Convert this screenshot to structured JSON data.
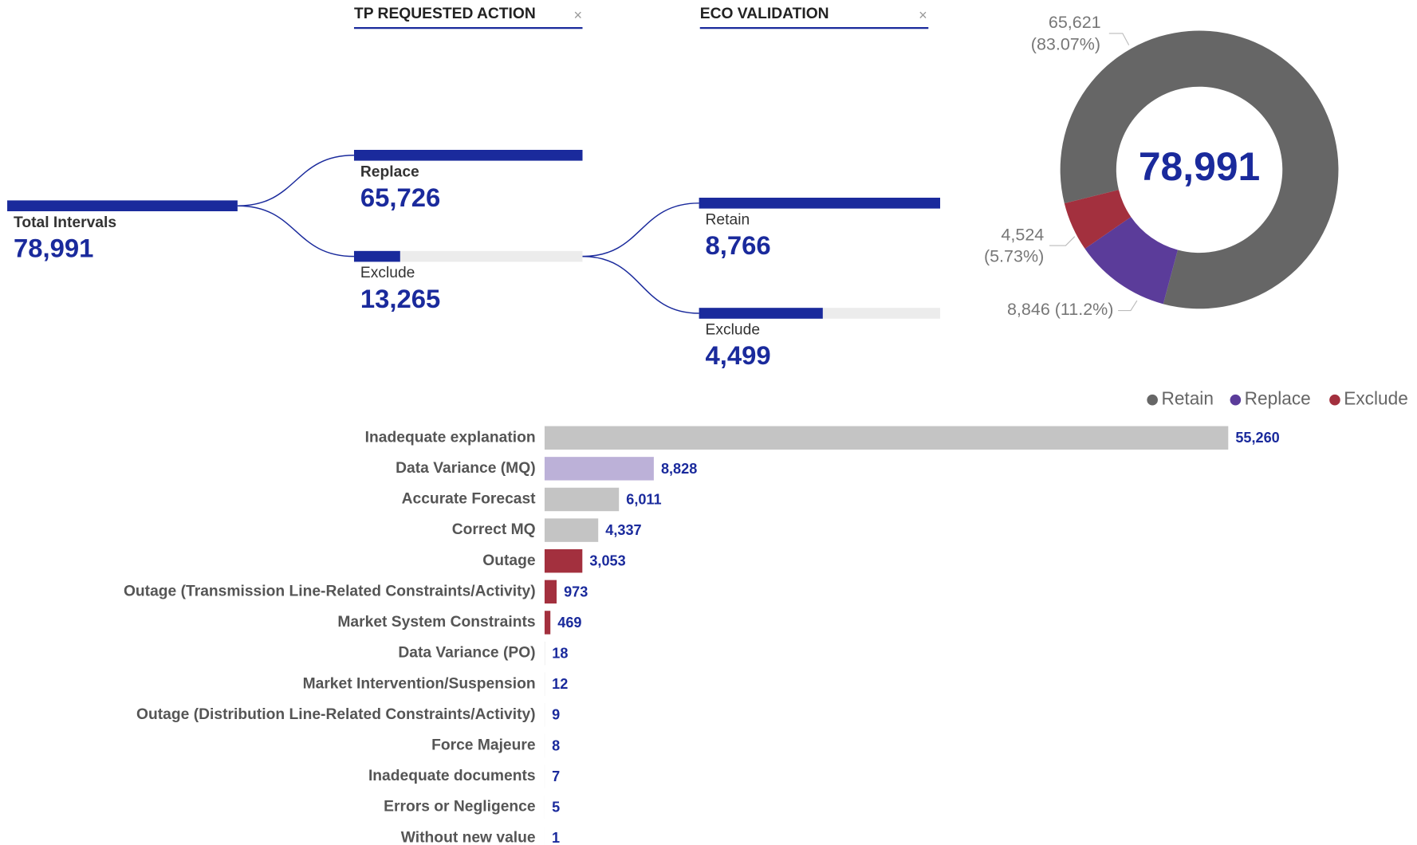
{
  "tree": {
    "headers": [
      "TP REQUESTED ACTION",
      "ECO VALIDATION"
    ],
    "root": {
      "label": "Total Intervals",
      "value": 78991,
      "value_label": "78,991"
    },
    "level1": [
      {
        "label": "Replace",
        "value": 65726,
        "value_label": "65,726"
      },
      {
        "label": "Exclude",
        "value": 13265,
        "value_label": "13,265"
      }
    ],
    "level2": [
      {
        "label": "Retain",
        "value": 8766,
        "value_label": "8,766"
      },
      {
        "label": "Exclude",
        "value": 4499,
        "value_label": "4,499"
      }
    ]
  },
  "chart_data": [
    {
      "type": "pie",
      "donut": true,
      "center_label": "78,991",
      "categories": [
        "Retain",
        "Replace",
        "Exclude"
      ],
      "values": [
        65621,
        8846,
        4524
      ],
      "value_labels": [
        [
          "65,621",
          "(83.07%)"
        ],
        [
          "8,846 (11.2%)"
        ],
        [
          "4,524",
          "(5.73%)"
        ]
      ],
      "colors": [
        "#666666",
        "#5b3c9a",
        "#a3303e"
      ],
      "legend": "top-right"
    },
    {
      "type": "bar",
      "orientation": "horizontal",
      "categories": [
        "Inadequate explanation",
        "Data Variance (MQ)",
        "Accurate Forecast",
        "Correct MQ",
        "Outage",
        "Outage (Transmission Line-Related Constraints/Activity)",
        "Market System Constraints",
        "Data Variance (PO)",
        "Market Intervention/Suspension",
        "Outage (Distribution Line-Related Constraints/Activity)",
        "Force Majeure",
        "Inadequate documents",
        "Errors or Negligence",
        "Without new value"
      ],
      "values": [
        55260,
        8828,
        6011,
        4337,
        3053,
        973,
        469,
        18,
        12,
        9,
        8,
        7,
        5,
        1
      ],
      "value_labels": [
        "55,260",
        "8,828",
        "6,011",
        "4,337",
        "3,053",
        "973",
        "469",
        "18",
        "12",
        "9",
        "8",
        "7",
        "5",
        "1"
      ],
      "colors": [
        "#c4c4c4",
        "#bcb1d8",
        "#c4c4c4",
        "#c4c4c4",
        "#a3303e",
        "#a3303e",
        "#a3303e",
        "#c4c4c4",
        "#c4c4c4",
        "#c4c4c4",
        "#c4c4c4",
        "#c4c4c4",
        "#c4c4c4",
        "#c4c4c4"
      ]
    }
  ]
}
